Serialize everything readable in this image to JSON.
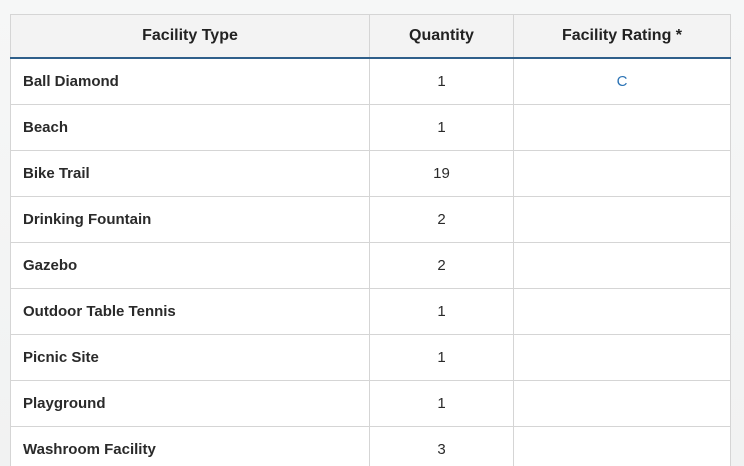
{
  "table": {
    "headers": {
      "type": "Facility Type",
      "quantity": "Quantity",
      "rating": "Facility Rating *"
    },
    "rows": [
      {
        "type": "Ball Diamond",
        "quantity": "1",
        "rating": "C"
      },
      {
        "type": "Beach",
        "quantity": "1",
        "rating": ""
      },
      {
        "type": "Bike Trail",
        "quantity": "19",
        "rating": ""
      },
      {
        "type": "Drinking Fountain",
        "quantity": "2",
        "rating": ""
      },
      {
        "type": "Gazebo",
        "quantity": "2",
        "rating": ""
      },
      {
        "type": "Outdoor Table Tennis",
        "quantity": "1",
        "rating": ""
      },
      {
        "type": "Picnic Site",
        "quantity": "1",
        "rating": ""
      },
      {
        "type": "Playground",
        "quantity": "1",
        "rating": ""
      },
      {
        "type": "Washroom Facility",
        "quantity": "3",
        "rating": ""
      }
    ]
  },
  "colors": {
    "header_rule": "#2f5f8a",
    "link": "#2b73b5"
  }
}
